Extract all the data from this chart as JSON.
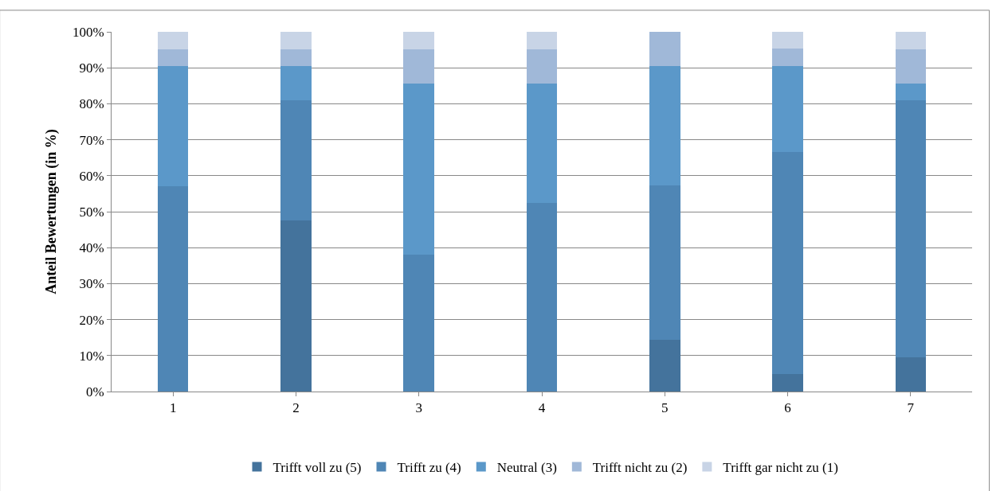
{
  "chart_data": {
    "type": "bar",
    "stacked": true,
    "ylabel": "Anteil Bewertungen (in %)",
    "categories": [
      "1",
      "2",
      "3",
      "4",
      "5",
      "6",
      "7"
    ],
    "series": [
      {
        "name": "Trifft voll zu (5)",
        "color": "#44739c",
        "values": [
          0,
          47.6,
          0,
          0,
          14.3,
          4.8,
          9.5
        ]
      },
      {
        "name": "Trifft zu (4)",
        "color": "#4f86b5",
        "values": [
          57.1,
          33.3,
          38.1,
          52.4,
          42.9,
          61.9,
          71.4
        ]
      },
      {
        "name": "Neutral (3)",
        "color": "#5b98c9",
        "values": [
          33.3,
          9.5,
          47.6,
          33.3,
          33.3,
          23.8,
          4.8
        ]
      },
      {
        "name": "Trifft nicht zu (2)",
        "color": "#a0b8d8",
        "values": [
          4.8,
          4.8,
          9.5,
          9.5,
          9.5,
          4.8,
          9.5
        ]
      },
      {
        "name": "Trifft gar nicht zu (1)",
        "color": "#c8d4e6",
        "values": [
          4.8,
          4.8,
          4.8,
          4.8,
          0,
          4.8,
          4.8
        ]
      }
    ],
    "ylim": [
      0,
      100
    ],
    "yticks": [
      {
        "value": 0,
        "label": "0%"
      },
      {
        "value": 10,
        "label": "10%"
      },
      {
        "value": 20,
        "label": "20%"
      },
      {
        "value": 30,
        "label": "30%"
      },
      {
        "value": 40,
        "label": "40%"
      },
      {
        "value": 50,
        "label": "50%"
      },
      {
        "value": 60,
        "label": "60%"
      },
      {
        "value": 70,
        "label": "70%"
      },
      {
        "value": 80,
        "label": "80%"
      },
      {
        "value": 90,
        "label": "90%"
      },
      {
        "value": 100,
        "label": "100%"
      }
    ],
    "grid": "y",
    "legend": "bottom"
  }
}
